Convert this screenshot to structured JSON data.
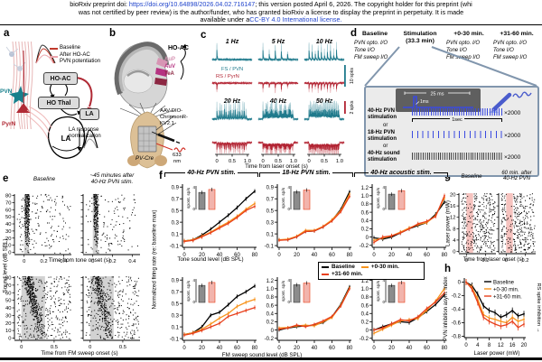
{
  "header": {
    "pre": "bioRxiv preprint doi: ",
    "doi": "https://doi.org/10.64898/2026.04.02.716147",
    "post": "; this version posted April 6, 2026. The copyright holder for this preprint (whi",
    "line2": "was not certified by peer review) is the author/funder, who has granted bioRxiv a license to display the preprint in perpetuity. It is made",
    "line3_pre": "available under a",
    "license": "CC-BY 4.0 International license."
  },
  "colors": {
    "baseline": "#000000",
    "early": "#f7941d",
    "late": "#e8401c",
    "teal": "#1f7a8c",
    "teal_light": "#9cc4cc",
    "crimson": "#b22433",
    "crimson_light": "#e2a3a8",
    "bar_gray": "#8c8c8c",
    "bar_pink": "#f2b4ac",
    "stim_blue": "#3a4ae0",
    "sound_dark": "#444444",
    "slate": "#8196ad",
    "band_gray": "#d2d2d2",
    "band_pink": "#f6c3bf",
    "aup": "#d795b4",
    "auv": "#b53381",
    "tea": "#8c2742",
    "pvn_teal": "#18808c",
    "pyrn_red": "#b02a35"
  },
  "panel_a": {
    "letter": "a",
    "legend": {
      "baseline": "Baseline",
      "after1": "After HO-AC",
      "after2": "PVN potentiation"
    },
    "pvn": "PVN",
    "pyrn": "PyrN",
    "box_hoac": "HO-AC",
    "box_hothal": "HO Thal",
    "box_la": "LA",
    "brain_la": "LA",
    "cap1": "LA response",
    "cap2": "normalization"
  },
  "panel_b": {
    "letter": "b",
    "hoac": "HO-AC",
    "aup": "AuP",
    "auv": "AuV",
    "tea": "TeA",
    "virus1": "AAV-DIO-",
    "virus2": "ChrimsonR-",
    "virus3": "KV2.1",
    "laser1": "633",
    "laser2": "nm",
    "mouse": "PV-Cre"
  },
  "panel_c": {
    "letter": "c",
    "freqs": [
      "1 Hz",
      "5 Hz",
      "10 Hz",
      "20 Hz",
      "40 Hz",
      "50 Hz"
    ],
    "fs_label": "FS / PVN",
    "rs_label": "RS / PyrN",
    "sb_teal": "10 spks",
    "sb_red": "2 spks",
    "xlabel": "Time from laser onset (s)"
  },
  "panel_d": {
    "letter": "d",
    "cols": [
      {
        "t": "Baseline",
        "l1": "PVN opto. I/O",
        "l2": "Tone I/O",
        "l3": "FM sweep I/O"
      },
      {
        "t": "Stimulation",
        "s": "(33.3 min)"
      },
      {
        "t": "+0-30 min.",
        "l1": "PVN opto. I/O",
        "l2": "Tone I/O",
        "l3": "FM sweep I/O"
      },
      {
        "t": "+31-60 min.",
        "l1": "PVN opto. I/O",
        "l2": "Tone I/O",
        "l3": "FM sweep I/O"
      }
    ],
    "pulse_window": "25 ms",
    "pulse_width": "1ms",
    "row1a": "40-Hz PVN",
    "row1b": "stimulation",
    "row2a": "18-Hz PVN",
    "row2b": "stimulation",
    "row3a": "40-Hz sound",
    "row3b": "stimulation",
    "or": "or",
    "count": "×2000",
    "scalebar": "1sec"
  },
  "panel_e": {
    "letter": "e",
    "title1": "Baseline",
    "title2a": "~45 minutes after",
    "title2b": "40-Hz PVN stim.",
    "ylabel": "Sound level (dB SPL)",
    "xlabel_tone": "Time from tone onset (s)",
    "xlabel_fm": "Time from FM sweep onset (s)"
  },
  "panel_f": {
    "letter": "f",
    "col_titles": [
      "40-Hz PVN stim.",
      "18-Hz PVN stim.",
      "40-Hz acoustic stim."
    ],
    "ylabel": "Normalized firing rate (re: baseline max)",
    "xlabel_tone": "Tone sound level (dB SPL)",
    "xlabel_fm": "FM sweep sound level (dB SPL)",
    "legend": [
      "Baseline",
      "+0-30 min.",
      "+31-60 min."
    ],
    "inset_label": "spont. sp/s"
  },
  "panel_g": {
    "letter": "g",
    "title1": "Baseline",
    "title2a": "60 min. after",
    "title2b": "40-Hz PVN",
    "ylabel": "Laser power (mW)",
    "xlabel": "Time from laser onset (s)"
  },
  "panel_h": {
    "letter": "h",
    "ylabel": "PVN inhibition asym. index",
    "xlabel": "Laser power (mW)",
    "legend": [
      "Baseline",
      "+0-30 min.",
      "+31-60 min."
    ],
    "right_label": "RS spike inhibition"
  },
  "chart_data": [
    {
      "id": "f-tone-40hz",
      "type": "line",
      "title": "40-Hz PVN stim.",
      "xlabel": "Tone sound level (dB SPL)",
      "ylabel": "Normalized firing rate (re: baseline max)",
      "x": [
        0,
        10,
        20,
        30,
        40,
        50,
        60,
        70,
        80
      ],
      "xticks": [
        0,
        20,
        40,
        60,
        80
      ],
      "yticks": [
        -0.1,
        0.1,
        0.3,
        0.5,
        0.7,
        0.9
      ],
      "ylim": [
        -0.13,
        0.95
      ],
      "err": 0.035,
      "series": [
        {
          "name": "Baseline",
          "values": [
            -0.02,
            0,
            0.08,
            0.18,
            0.3,
            0.42,
            0.55,
            0.7,
            0.83
          ]
        },
        {
          "name": "+0-30 min.",
          "values": [
            -0.02,
            0,
            0.06,
            0.13,
            0.22,
            0.3,
            0.4,
            0.52,
            0.62
          ]
        },
        {
          "name": "+31-60 min.",
          "values": [
            -0.03,
            -0.01,
            0.05,
            0.12,
            0.2,
            0.28,
            0.38,
            0.5,
            0.57
          ]
        }
      ],
      "inset": {
        "label": "spont. sp/s",
        "ylim": [
          0,
          4
        ],
        "bars": [
          2.9,
          3.4
        ]
      }
    },
    {
      "id": "f-tone-18hz",
      "type": "line",
      "title": "18-Hz PVN stim.",
      "xlabel": "Tone sound level (dB SPL)",
      "x": [
        0,
        10,
        20,
        30,
        40,
        50,
        60,
        70,
        80
      ],
      "xticks": [
        0,
        20,
        40,
        60,
        80
      ],
      "yticks": [
        -0.1,
        0.1,
        0.3,
        0.5,
        0.7,
        0.9
      ],
      "ylim": [
        -0.13,
        0.95
      ],
      "err": 0.03,
      "series": [
        {
          "name": "Baseline",
          "values": [
            0,
            0,
            0.05,
            0.14,
            0.15,
            0.22,
            0.33,
            0.52,
            0.82
          ]
        },
        {
          "name": "+0-30 min.",
          "values": [
            0,
            0.01,
            0.06,
            0.16,
            0.16,
            0.23,
            0.34,
            0.5,
            0.78
          ]
        },
        {
          "name": "+31-60 min.",
          "values": [
            -0.01,
            0,
            0.05,
            0.14,
            0.15,
            0.22,
            0.32,
            0.48,
            0.74
          ]
        }
      ],
      "inset": {
        "label": "spont. sp/s",
        "ylim": [
          0,
          4
        ],
        "bars": [
          3.0,
          3.3
        ]
      }
    },
    {
      "id": "f-tone-acoustic",
      "type": "line",
      "title": "40-Hz acoustic stim.",
      "xlabel": "Tone sound level (dB SPL)",
      "x": [
        0,
        10,
        20,
        30,
        40,
        50,
        60,
        70,
        80
      ],
      "xticks": [
        0,
        20,
        40,
        60,
        80
      ],
      "yticks": [
        -0.2,
        0,
        0.2,
        0.4,
        0.6,
        0.8,
        1.0,
        1.2
      ],
      "ylim": [
        -0.25,
        1.28
      ],
      "err": 0.05,
      "series": [
        {
          "name": "Baseline",
          "values": [
            -0.02,
            -0.05,
            0,
            0.1,
            0.2,
            0.28,
            0.35,
            0.55,
            0.85
          ]
        },
        {
          "name": "+0-30 min.",
          "values": [
            -0.08,
            -0.02,
            0.03,
            0.12,
            0.22,
            0.3,
            0.35,
            0.52,
            0.95
          ]
        },
        {
          "name": "+31-60 min.",
          "values": [
            -0.13,
            0,
            0.03,
            0.1,
            0.2,
            0.32,
            0.38,
            0.5,
            1.0
          ]
        }
      ],
      "inset": {
        "label": "spont. sp/s",
        "ylim": [
          0,
          4
        ],
        "bars": [
          2.6,
          3.2
        ]
      }
    },
    {
      "id": "f-fm-40hz",
      "type": "line",
      "title": "40-Hz PVN stim.",
      "xlabel": "FM sweep sound level (dB SPL)",
      "x": [
        0,
        10,
        20,
        30,
        40,
        50,
        60,
        70,
        80
      ],
      "xticks": [
        0,
        20,
        40,
        60,
        80
      ],
      "yticks": [
        -0.1,
        0.1,
        0.3,
        0.5,
        0.7,
        0.9
      ],
      "ylim": [
        -0.13,
        0.95
      ],
      "err": 0.035,
      "series": [
        {
          "name": "Baseline",
          "values": [
            -0.03,
            0,
            0.1,
            0.3,
            0.35,
            0.48,
            0.62,
            0.7,
            0.8
          ]
        },
        {
          "name": "+0-30 min.",
          "values": [
            -0.03,
            0,
            0.06,
            0.15,
            0.25,
            0.33,
            0.45,
            0.52,
            0.57
          ]
        },
        {
          "name": "+31-60 min.",
          "values": [
            -0.04,
            -0.01,
            0.04,
            0.1,
            0.16,
            0.28,
            0.33,
            0.38,
            0.43
          ]
        }
      ],
      "inset": {
        "label": "spont. sp/s",
        "ylim": [
          0,
          4
        ],
        "bars": [
          2.9,
          3.4
        ]
      }
    },
    {
      "id": "f-fm-18hz",
      "type": "line",
      "title": "18-Hz PVN stim.",
      "xlabel": "FM sweep sound level (dB SPL)",
      "x": [
        0,
        10,
        20,
        30,
        40,
        50,
        60,
        70,
        80
      ],
      "xticks": [
        0,
        20,
        40,
        60,
        80
      ],
      "yticks": [
        -0.2,
        0,
        0.2,
        0.4,
        0.6,
        0.8,
        1.0,
        1.2
      ],
      "ylim": [
        -0.25,
        1.28
      ],
      "err": 0.04,
      "series": [
        {
          "name": "Baseline",
          "values": [
            0,
            0.05,
            0.08,
            0.1,
            0.12,
            0.18,
            0.32,
            0.62,
            1.05
          ]
        },
        {
          "name": "+0-30 min.",
          "values": [
            0.05,
            0.06,
            0.1,
            0.12,
            0.1,
            0.2,
            0.3,
            0.6,
            1.02
          ]
        },
        {
          "name": "+31-60 min.",
          "values": [
            0.02,
            0.05,
            0.12,
            0.08,
            0.14,
            0.22,
            0.33,
            0.58,
            1.0
          ]
        }
      ],
      "inset": {
        "label": "spont. sp/s",
        "ylim": [
          0,
          4
        ],
        "bars": [
          3.0,
          3.3
        ]
      }
    },
    {
      "id": "f-fm-acoustic",
      "type": "line",
      "title": "40-Hz acoustic stim.",
      "xlabel": "FM sweep sound level (dB SPL)",
      "x": [
        0,
        10,
        20,
        30,
        40,
        50,
        60,
        70,
        80
      ],
      "xticks": [
        0,
        20,
        40,
        60,
        80
      ],
      "yticks": [
        -0.2,
        0,
        0.2,
        0.4,
        0.6,
        0.8,
        1.0,
        1.2
      ],
      "ylim": [
        -0.25,
        1.28
      ],
      "err": 0.05,
      "series": [
        {
          "name": "Baseline",
          "values": [
            0,
            0.08,
            0.15,
            0.2,
            0.18,
            0.3,
            0.45,
            0.62,
            0.85
          ]
        },
        {
          "name": "+0-30 min.",
          "values": [
            -0.08,
            0.02,
            0.12,
            0.22,
            0.25,
            0.28,
            0.48,
            0.7,
            1.0
          ]
        },
        {
          "name": "+31-60 min.",
          "values": [
            0,
            0.05,
            0.15,
            0.25,
            0.22,
            0.32,
            0.52,
            0.68,
            0.9
          ]
        }
      ],
      "inset": {
        "label": "spont. sp/s",
        "ylim": [
          0,
          4
        ],
        "bars": [
          2.9,
          3.4
        ]
      }
    },
    {
      "id": "h-pvn-inhibition",
      "type": "line",
      "title": "",
      "xlabel": "Laser power (mW)",
      "ylabel": "PVN inhibition asym. index",
      "x": [
        0,
        2,
        4,
        6,
        8,
        10,
        12,
        14,
        16,
        18,
        20
      ],
      "xticks": [
        0,
        4,
        8,
        12,
        16,
        20
      ],
      "yticks": [
        0,
        -0.2,
        -0.4,
        -0.6,
        -0.8
      ],
      "ylim": [
        -0.82,
        0.06
      ],
      "err": 0.045,
      "legend_inside": true,
      "series": [
        {
          "name": "Baseline",
          "values": [
            0,
            -0.05,
            -0.18,
            -0.35,
            -0.42,
            -0.45,
            -0.52,
            -0.48,
            -0.42,
            -0.5,
            -0.47
          ]
        },
        {
          "name": "+0-30 min.",
          "values": [
            0,
            -0.08,
            -0.25,
            -0.48,
            -0.53,
            -0.55,
            -0.58,
            -0.6,
            -0.52,
            -0.58,
            -0.55
          ]
        },
        {
          "name": "+31-60 min.",
          "values": [
            0,
            -0.1,
            -0.3,
            -0.52,
            -0.58,
            -0.62,
            -0.65,
            -0.63,
            -0.58,
            -0.67,
            -0.62
          ]
        }
      ]
    },
    {
      "id": "e-tone",
      "type": "raster",
      "mode": "tone",
      "titles": [
        "Baseline",
        "~45 minutes after 40-Hz PVN stim."
      ],
      "xlim": [
        -0.08,
        0.47
      ],
      "stim_band": [
        0,
        0.05
      ],
      "xticks": [
        0,
        0.2,
        0.4
      ],
      "yticks": [
        80,
        70,
        60,
        50,
        40,
        30,
        20,
        10,
        0
      ],
      "ymax": 80,
      "xlabel": "Time from tone onset (s)",
      "ylabel": "Sound level (dB SPL)"
    },
    {
      "id": "e-fm",
      "type": "raster",
      "mode": "fm",
      "titles": [
        "Baseline",
        "~45 minutes after 40-Hz PVN stim."
      ],
      "xlim": [
        -0.08,
        0.75
      ],
      "stim_band": [
        0,
        0.36
      ],
      "xticks": [
        0,
        0.5
      ],
      "yticks": [
        80,
        70,
        60,
        50,
        40,
        30,
        20,
        10,
        0
      ],
      "ymax": 80,
      "xlabel": "Time from FM sweep onset (s)",
      "ylabel": "Sound level (dB SPL)"
    },
    {
      "id": "g-laser",
      "type": "raster",
      "mode": "laser",
      "titles": [
        "Baseline",
        "60 min. after 40-Hz PVN"
      ],
      "xlim": [
        -0.06,
        0.3
      ],
      "stim_band": [
        0,
        0.07
      ],
      "xticks": [
        0,
        0.2
      ],
      "yticks": [
        20,
        16,
        12,
        8,
        4,
        0
      ],
      "ymax": 20,
      "xlabel": "Time from laser onset (s)",
      "ylabel": "Laser power (mW)"
    },
    {
      "id": "c-traces",
      "type": "trace-grid",
      "frequencies_hz": [
        1,
        5,
        10,
        20,
        40,
        50
      ],
      "frequency_labels": [
        "1 Hz",
        "5 Hz",
        "10 Hz",
        "20 Hz",
        "40 Hz",
        "50 Hz"
      ],
      "trace_types": [
        "FS / PVN",
        "RS / PyrN"
      ],
      "xticks": [
        0,
        0.5,
        1.0
      ],
      "xlabel": "Time from laser onset (s)",
      "scale_bars": [
        "10 spks",
        "2 spks"
      ]
    }
  ]
}
